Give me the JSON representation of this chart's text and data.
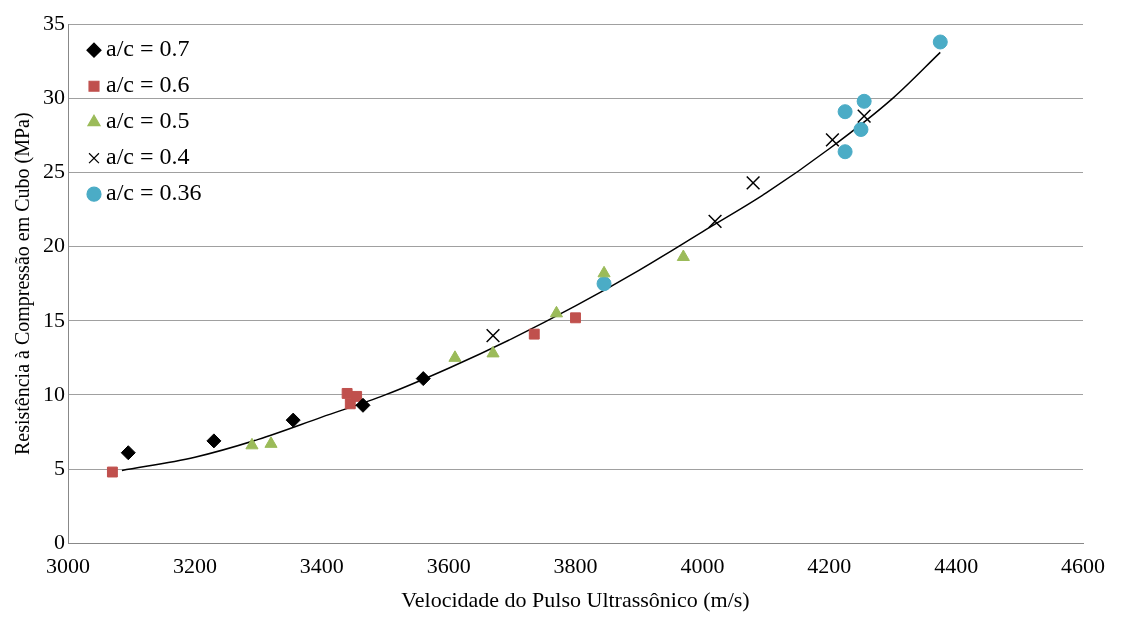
{
  "chart_data": {
    "type": "scatter",
    "xlabel": "Velocidade do Pulso Ultrassônico (m/s)",
    "ylabel": "Resistência à Compressão em Cubo (MPa)",
    "xlim": [
      3000,
      4600
    ],
    "xticks": [
      3000,
      3200,
      3400,
      3600,
      3800,
      4000,
      4200,
      4400,
      4600
    ],
    "ylim": [
      0,
      35
    ],
    "yticks": [
      0,
      5,
      10,
      15,
      20,
      25,
      30,
      35
    ],
    "grid": "y",
    "legend": "top left",
    "series": [
      {
        "name": "a/c = 0.7",
        "color": "#000000",
        "marker": "diamond",
        "x": [
          3095,
          3230,
          3355,
          3465,
          3560
        ],
        "values": [
          6.1,
          6.9,
          8.3,
          9.3,
          11.1
        ]
      },
      {
        "name": "a/c = 0.6",
        "color": "#c0504d",
        "marker": "square",
        "x": [
          3070,
          3440,
          3445,
          3455,
          3735,
          3800
        ],
        "values": [
          4.8,
          10.1,
          9.4,
          9.9,
          14.1,
          15.2
        ]
      },
      {
        "name": "a/c = 0.5",
        "color": "#9bbb59",
        "marker": "triangle",
        "x": [
          3290,
          3320,
          3610,
          3670,
          3770,
          3845,
          3970
        ],
        "values": [
          6.6,
          6.7,
          12.5,
          12.8,
          15.5,
          18.2,
          19.3
        ]
      },
      {
        "name": "a/c = 0.4",
        "color": "#000000",
        "marker": "cross",
        "x": [
          3670,
          4020,
          4080,
          4205,
          4255
        ],
        "values": [
          14.0,
          21.7,
          24.3,
          27.2,
          28.8
        ]
      },
      {
        "name": "a/c = 0.36",
        "color": "#4bacc6",
        "marker": "circle",
        "x": [
          3845,
          4225,
          4225,
          4250,
          4255,
          4375
        ],
        "values": [
          17.5,
          26.4,
          29.1,
          27.9,
          29.8,
          33.8
        ]
      },
      {
        "type": "line",
        "color": "#000000",
        "marker": "none",
        "line_style": "solid",
        "x": [
          3085,
          3200,
          3300,
          3400,
          3500,
          3600,
          3700,
          3800,
          3900,
          4000,
          4100,
          4200,
          4300,
          4375
        ],
        "values": [
          4.9,
          5.8,
          7.0,
          8.5,
          10.0,
          11.8,
          13.8,
          16.0,
          18.4,
          21.0,
          23.6,
          26.6,
          30.0,
          33.1
        ]
      }
    ]
  }
}
